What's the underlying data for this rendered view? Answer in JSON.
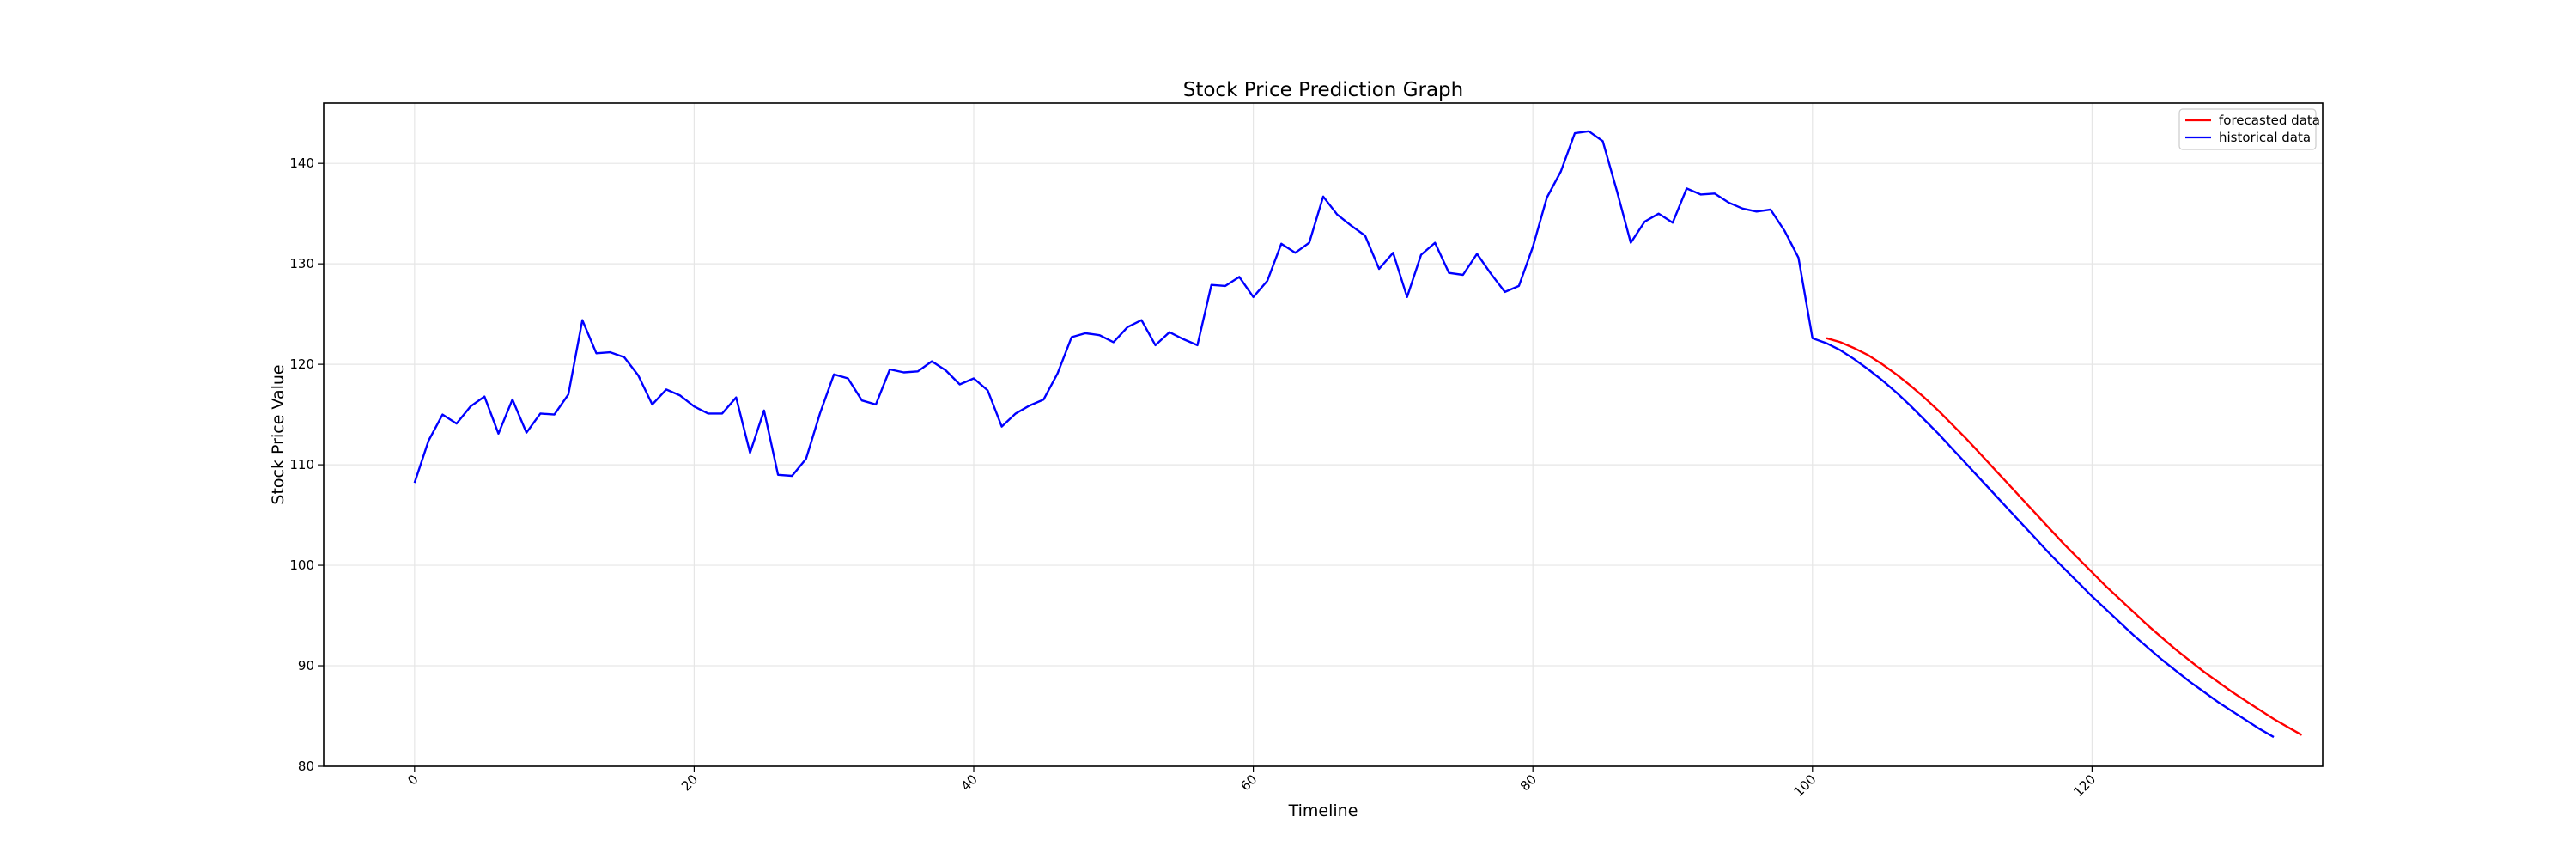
{
  "chart_data": {
    "type": "line",
    "title": "Stock Price Prediction Graph",
    "xlabel": "Timeline",
    "ylabel": "Stock Price Value",
    "xlim": [
      -6.5,
      136.5
    ],
    "ylim": [
      80,
      146
    ],
    "xticks": [
      0,
      20,
      40,
      60,
      80,
      100,
      120
    ],
    "yticks": [
      80,
      90,
      100,
      110,
      120,
      130,
      140
    ],
    "grid": true,
    "legend_position": "top-right",
    "series": [
      {
        "name": "forecasted data",
        "color": "#ff0000",
        "x_start": 101,
        "values": [
          122.6,
          122.2,
          121.6,
          120.9,
          120.0,
          119.0,
          117.9,
          116.7,
          115.4,
          114.0,
          112.6,
          111.1,
          109.6,
          108.1,
          106.6,
          105.1,
          103.6,
          102.1,
          100.7,
          99.3,
          97.9,
          96.6,
          95.3,
          94.0,
          92.8,
          91.6,
          90.5,
          89.4,
          88.4,
          87.4,
          86.5,
          85.6,
          84.7,
          83.9,
          83.1
        ]
      },
      {
        "name": "historical data",
        "color": "#0000ff",
        "x_start": 0,
        "values": [
          108.2,
          112.4,
          115.0,
          114.1,
          115.8,
          116.8,
          113.1,
          116.5,
          113.2,
          115.1,
          115.0,
          117.0,
          124.4,
          121.1,
          121.2,
          120.7,
          118.9,
          116.0,
          117.5,
          116.9,
          115.8,
          115.1,
          115.1,
          116.7,
          111.2,
          115.4,
          109.0,
          108.9,
          110.6,
          115.1,
          119.0,
          118.6,
          116.4,
          116.0,
          119.5,
          119.2,
          119.3,
          120.3,
          119.4,
          118.0,
          118.6,
          117.4,
          113.8,
          115.1,
          115.9,
          116.5,
          119.1,
          122.7,
          123.1,
          122.9,
          122.2,
          123.7,
          124.4,
          121.9,
          123.2,
          122.5,
          121.9,
          127.9,
          127.8,
          128.7,
          126.7,
          128.3,
          132.0,
          131.1,
          132.1,
          136.7,
          134.9,
          133.8,
          132.8,
          129.5,
          131.1,
          126.7,
          130.9,
          132.1,
          129.1,
          128.9,
          131.0,
          129.0,
          127.2,
          127.8,
          131.7,
          136.6,
          139.2,
          143.0,
          143.2,
          142.2,
          137.3,
          132.1,
          134.2,
          135.0,
          134.1,
          137.5,
          136.9,
          137.0,
          136.1,
          135.5,
          135.2,
          135.4,
          133.3,
          130.6,
          122.6,
          122.1,
          121.4,
          120.5,
          119.5,
          118.4,
          117.2,
          115.9,
          114.5,
          113.1,
          111.6,
          110.1,
          108.6,
          107.1,
          105.6,
          104.1,
          102.6,
          101.1,
          99.7,
          98.3,
          96.9,
          95.6,
          94.3,
          93.0,
          91.8,
          90.6,
          89.5,
          88.4,
          87.4,
          86.4,
          85.5,
          84.6,
          83.7,
          82.9
        ]
      }
    ]
  }
}
